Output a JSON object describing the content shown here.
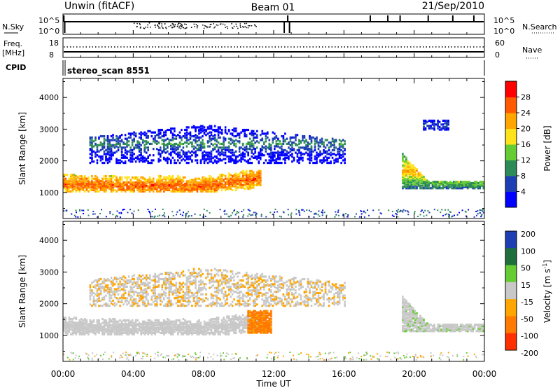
{
  "header": {
    "left_title": "Unwin (fitACF)",
    "center_title": "Beam 01",
    "right_title": "21/Sep/2010"
  },
  "strips": {
    "nsky_label": "N.Sky",
    "nsky_ticks": [
      "10^5",
      "10^0"
    ],
    "nsearch_label": "N.Search",
    "nsearch_ticks": [
      "10^5",
      "10^0"
    ],
    "freq_label": "Freq.",
    "freq_unit": "[MHz]",
    "freq_ticks": [
      "18",
      "8"
    ],
    "nave_label": "Nave",
    "nave_ticks": [
      "60",
      "0"
    ],
    "cpid_label": "CPID",
    "cpid_value": "stereo_scan 8551"
  },
  "chart_data": [
    {
      "type": "heatmap",
      "title": "",
      "xlabel": "",
      "ylabel": "Slant Range [km]",
      "x_ticks": [
        "00:00",
        "04:00",
        "08:00",
        "12:00",
        "16:00",
        "20:00",
        "00:00"
      ],
      "xlim_hours": [
        0,
        24
      ],
      "y_ticks": [
        1000,
        2000,
        3000,
        4000
      ],
      "ylim": [
        180,
        4600
      ],
      "colorbar": {
        "label": "Power [dB]",
        "ticks": [
          4,
          8,
          12,
          16,
          20,
          24,
          28
        ],
        "range": [
          0,
          32
        ],
        "colors": [
          "#0000ff",
          "#1e3fb4",
          "#2e8b57",
          "#66cc33",
          "#ffe31a",
          "#ffa500",
          "#ff5a00",
          "#ff0000"
        ]
      },
      "regions": [
        {
          "name": "main_echo",
          "t_start": 0.0,
          "t_end": 11.2,
          "range_km": [
            1000,
            1650
          ],
          "power_db": 26
        },
        {
          "name": "upper_layer",
          "t_start": 1.5,
          "t_end": 16.0,
          "range_km": [
            1900,
            3100
          ],
          "power_db": 10
        },
        {
          "name": "late_echo",
          "t_start": 19.3,
          "t_end": 24.0,
          "range_km": [
            1100,
            2200
          ],
          "power_db": 22
        },
        {
          "name": "late_high",
          "t_start": 20.5,
          "t_end": 22.0,
          "range_km": [
            2950,
            3250
          ],
          "power_db": 6
        }
      ]
    },
    {
      "type": "heatmap",
      "title": "",
      "xlabel": "Time UT",
      "ylabel": "Slant Range [km]",
      "x_ticks": [
        "00:00",
        "04:00",
        "08:00",
        "12:00",
        "16:00",
        "20:00",
        "00:00"
      ],
      "xlim_hours": [
        0,
        24
      ],
      "y_ticks": [
        1000,
        2000,
        3000,
        4000
      ],
      "ylim": [
        180,
        4600
      ],
      "colorbar": {
        "label": "Velocity [m s^-1]",
        "ticks": [
          200,
          100,
          50,
          15,
          -15,
          -50,
          -100,
          -200
        ],
        "colors": [
          "#1e3fb4",
          "#1e6f3c",
          "#66cc33",
          "#c8c8c8",
          "#ffa500",
          "#ff7a00",
          "#ff3000"
        ]
      },
      "regions": [
        {
          "name": "main_echo",
          "t_start": 0.0,
          "t_end": 11.2,
          "range_km": [
            1000,
            1650
          ],
          "velocity": 0
        },
        {
          "name": "upper_layer",
          "t_start": 1.5,
          "t_end": 16.0,
          "range_km": [
            1900,
            3100
          ],
          "velocity": -10
        },
        {
          "name": "late_echo",
          "t_start": 19.3,
          "t_end": 24.0,
          "range_km": [
            1100,
            2200
          ],
          "velocity": 5
        },
        {
          "name": "orange_patch",
          "t_start": 10.5,
          "t_end": 11.8,
          "range_km": [
            1050,
            1750
          ],
          "velocity": -60
        }
      ]
    }
  ]
}
